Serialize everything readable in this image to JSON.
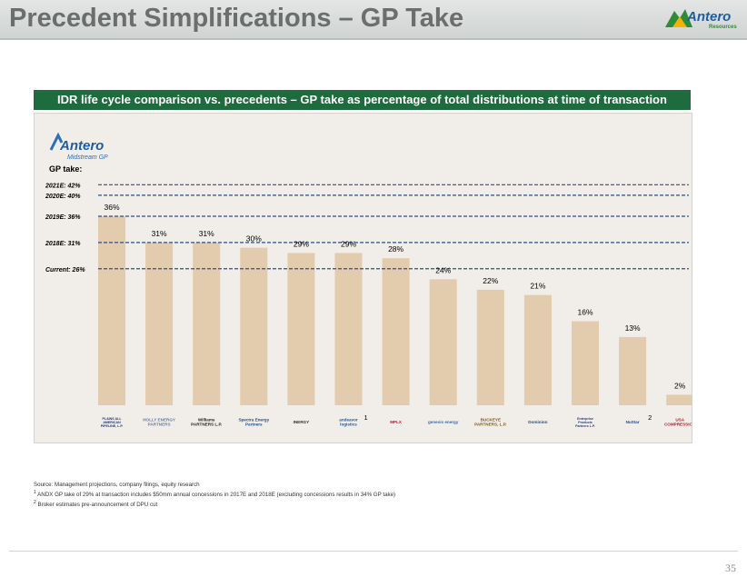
{
  "page": {
    "title": "Precedent Simplifications – GP Take",
    "brand": {
      "name": "Antero",
      "sub": "Resources"
    },
    "page_number": "35"
  },
  "chart_header": "IDR life cycle comparison vs. precedents – GP take as percentage of total distributions at time of transaction",
  "antero_logo": {
    "name": "Antero",
    "sub": "Midstream GP"
  },
  "colors": {
    "bar": "#e3cbad",
    "header": "#1e6b3e",
    "reference_line": "#2a4f8a",
    "plot_bg": "#f1ede8"
  },
  "chart_data": {
    "type": "bar",
    "title": "IDR life cycle comparison vs. precedents – GP take as percentage of total distributions at time of transaction",
    "ylabel": "GP take (%)",
    "ylim": [
      0,
      42
    ],
    "grid": false,
    "categories": [
      "PLAINS ALL AMERICAN PIPELINE, L.P.",
      "HOLLY ENERGY PARTNERS",
      "Williams PARTNERS L.P.",
      "Spectra Energy Partners",
      "INERGY",
      "andeavor logistics",
      "MPLX",
      "genesis energy",
      "BUCKEYE PARTNERS, L.P.",
      "Dominion",
      "Enterprise Products Partners L.P.",
      "NuStar",
      "USA COMPRESSION"
    ],
    "values": [
      36,
      31,
      31,
      30,
      29,
      29,
      28,
      24,
      22,
      21,
      16,
      13,
      2
    ],
    "labels": [
      "36%",
      "31%",
      "31%",
      "30%",
      "29%",
      "29%",
      "28%",
      "24%",
      "22%",
      "21%",
      "16%",
      "13%",
      "2%"
    ],
    "footnote_marks": [
      {
        "index": 5,
        "mark": "1"
      },
      {
        "index": 11,
        "mark": "2"
      }
    ],
    "reference_title": "GP take:",
    "reference_lines": [
      {
        "label": "2021E: 42%",
        "value": 42
      },
      {
        "label": "2020E: 40%",
        "value": 40
      },
      {
        "label": "2019E: 36%",
        "value": 36
      },
      {
        "label": "2018E: 31%",
        "value": 31
      },
      {
        "label": "Current: 26%",
        "value": 26
      }
    ]
  },
  "footnotes": {
    "source": "Source: Management projections, company filings, equity research",
    "note1_mark": "1",
    "note1": "ANDX GP take of 29% at transaction  includes $50mm annual concessions in 2017E and 2018E (excluding concessions results in 34% GP take)",
    "note2_mark": "2",
    "note2": "Broker estimates pre-announcement of DPU cut"
  }
}
